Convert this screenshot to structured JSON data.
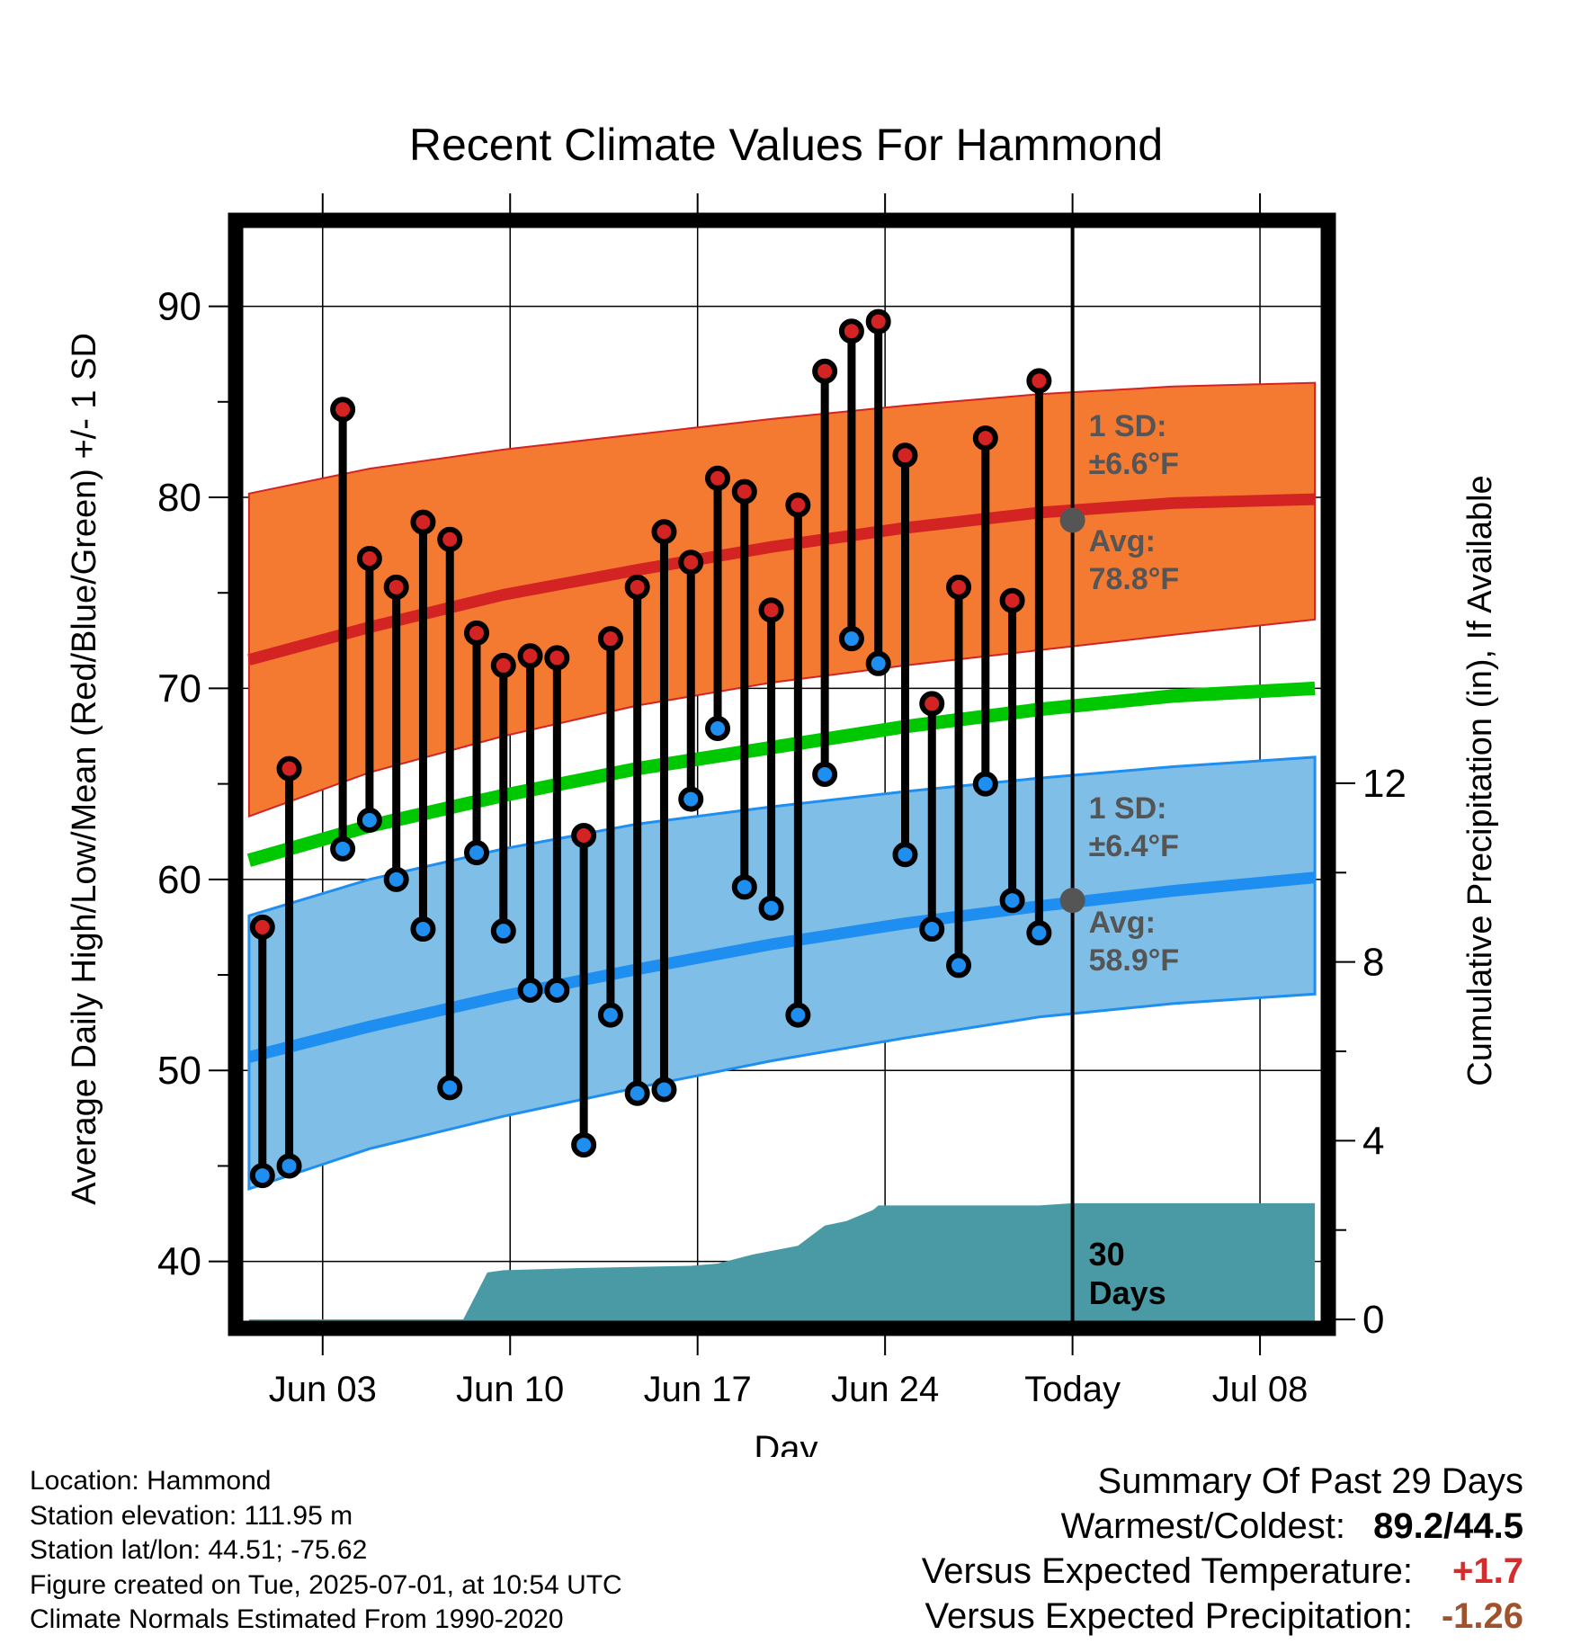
{
  "chart_data": {
    "type": "line",
    "title": "Recent Climate Values For Hammond",
    "xlabel": "Day",
    "ylabel": "Average Daily High/Low/Mean (Red/Blue/Green) +/- 1 SD",
    "y2label": "Cumulative Precipitation (in), If Available",
    "xlim": [
      0,
      40.8
    ],
    "ylim": [
      36.5,
      94.5
    ],
    "y2lim": [
      -0.2,
      24.6
    ],
    "x_ticks": [
      {
        "x": 3.25,
        "label": "Jun 03"
      },
      {
        "x": 10.25,
        "label": "Jun 10"
      },
      {
        "x": 17.25,
        "label": "Jun 17"
      },
      {
        "x": 24.25,
        "label": "Jun 24"
      },
      {
        "x": 31.25,
        "label": "Today"
      },
      {
        "x": 38.25,
        "label": "Jul 08"
      }
    ],
    "y_ticks": [
      40,
      50,
      60,
      70,
      80,
      90
    ],
    "y2_ticks": [
      0,
      4,
      8,
      12
    ],
    "grid": true,
    "today_x": 31.25,
    "observed": {
      "days_x": [
        1,
        2,
        4,
        5,
        6,
        7,
        8,
        9,
        10,
        11,
        12,
        13,
        14,
        15,
        16,
        17,
        18,
        19,
        20,
        21,
        22,
        23,
        24,
        25,
        26,
        27,
        28,
        29,
        30
      ],
      "highs": [
        57.5,
        65.8,
        84.6,
        76.8,
        75.3,
        78.7,
        77.8,
        72.9,
        71.2,
        71.7,
        71.6,
        62.3,
        72.6,
        75.3,
        78.2,
        76.6,
        81.0,
        80.3,
        74.1,
        79.6,
        86.6,
        88.7,
        89.2,
        82.2,
        69.2,
        75.3,
        83.1,
        74.6,
        86.1
      ],
      "lows": [
        44.5,
        45.0,
        61.6,
        63.1,
        60.0,
        57.4,
        49.1,
        61.4,
        57.3,
        54.2,
        54.2,
        46.1,
        52.9,
        48.8,
        49.0,
        64.2,
        67.9,
        59.6,
        58.5,
        52.9,
        65.5,
        72.6,
        71.3,
        61.3,
        57.4,
        55.5,
        65.0,
        58.9,
        57.2
      ]
    },
    "normals": {
      "x": [
        0.5,
        5,
        10,
        15,
        20,
        25,
        30,
        35,
        40.3
      ],
      "avg_high": [
        71.5,
        73.2,
        74.9,
        76.2,
        77.4,
        78.4,
        79.2,
        79.7,
        79.9
      ],
      "high_sd_upper": [
        80.2,
        81.5,
        82.5,
        83.3,
        84.1,
        84.8,
        85.4,
        85.8,
        86.0
      ],
      "high_sd_lower": [
        63.3,
        65.6,
        67.5,
        69.1,
        70.3,
        71.2,
        72.0,
        72.8,
        73.6
      ],
      "avg_low": [
        50.7,
        52.3,
        53.9,
        55.3,
        56.6,
        57.7,
        58.6,
        59.4,
        60.1
      ],
      "low_sd_upper": [
        58.1,
        60.0,
        61.6,
        62.9,
        63.8,
        64.6,
        65.3,
        65.9,
        66.4
      ],
      "low_sd_lower": [
        43.8,
        45.9,
        47.6,
        49.1,
        50.5,
        51.7,
        52.8,
        53.5,
        54.0
      ],
      "avg_mean": [
        61.0,
        62.8,
        64.4,
        65.8,
        66.9,
        68.0,
        68.9,
        69.6,
        70.0
      ]
    },
    "precipitation": {
      "x": [
        0.5,
        8.5,
        9.4,
        10.0,
        13.0,
        17.0,
        18.0,
        19.3,
        21.0,
        22.0,
        22.8,
        23.8,
        24.0,
        30.0,
        31.25,
        40.3
      ],
      "cum": [
        0.0,
        0.0,
        1.05,
        1.1,
        1.15,
        1.2,
        1.25,
        1.45,
        1.65,
        2.1,
        2.2,
        2.45,
        2.55,
        2.55,
        2.6,
        2.6
      ]
    },
    "annotations": {
      "high_sd": "±6.6°F",
      "high_avg": "78.8°F",
      "low_sd": "±6.4°F",
      "low_avg": "58.9°F",
      "sd_label": "1 SD:",
      "avg_label": "Avg:",
      "days_line1": "30",
      "days_line2": "Days",
      "today_high_avg": 78.8,
      "today_low_avg": 58.9
    },
    "colors": {
      "high_band": "#f47a32",
      "high_line": "#d42323",
      "low_band": "#7fbee6",
      "low_line": "#1e8ff0",
      "low_band_edge": "#1e8ff0",
      "mean_line": "#00c800",
      "precip": "#4a9aa5",
      "annotation_text": "#555555",
      "high_dot": "#d42323",
      "low_dot": "#1e8ff0"
    }
  },
  "info": {
    "location": "Location: Hammond",
    "elevation": "Station elevation: 111.95 m",
    "latlon": "Station lat/lon: 44.51; -75.62",
    "created": "Figure created on Tue, 2025-07-01, at 10:54 UTC",
    "normals": "Climate Normals Estimated From 1990-2020"
  },
  "summary": {
    "heading": "Summary Of Past 29 Days",
    "warmest_label": "Warmest/Coldest:",
    "warmest_value": "89.2/44.5",
    "temp_label": "Versus Expected Temperature:",
    "temp_value": "+1.7",
    "precip_label": "Versus Expected Precipitation:",
    "precip_value": "-1.26"
  }
}
